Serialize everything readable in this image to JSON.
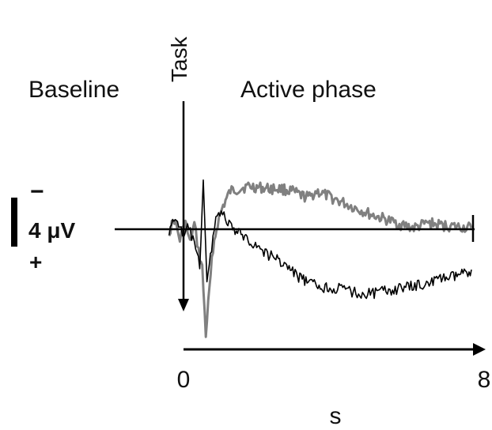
{
  "chart_data": {
    "type": "line",
    "labels": {
      "baseline": "Baseline",
      "task": "Task",
      "active_phase": "Active phase",
      "scale": "4 μV",
      "polarity_negative": "−",
      "polarity_positive": "+",
      "x_unit": "s"
    },
    "x_axis": {
      "ticks": [
        "0",
        "8"
      ],
      "range": [
        0,
        8
      ],
      "unit": "s"
    },
    "y_axis": {
      "unit": "μV",
      "scale_bar_value": 4,
      "negative_up": true
    },
    "series": [
      {
        "color": "#808080",
        "points": [
          [
            -0.4,
            0.2
          ],
          [
            -0.25,
            -0.8
          ],
          [
            -0.1,
            0.9
          ],
          [
            0.05,
            -0.6
          ],
          [
            0.18,
            1.2
          ],
          [
            0.3,
            -0.4
          ],
          [
            0.42,
            1.8
          ],
          [
            0.52,
            3.2
          ],
          [
            0.62,
            8.6
          ],
          [
            0.72,
            5.0
          ],
          [
            0.82,
            1.5
          ],
          [
            0.95,
            -0.5
          ],
          [
            1.1,
            -1.9
          ],
          [
            1.3,
            -3.1
          ],
          [
            1.55,
            -3.3
          ],
          [
            1.8,
            -3.5
          ],
          [
            2.1,
            -3.4
          ],
          [
            2.4,
            -3.3
          ],
          [
            2.7,
            -3.3
          ],
          [
            3.0,
            -3.1
          ],
          [
            3.3,
            -2.7
          ],
          [
            3.5,
            -2.6
          ],
          [
            3.7,
            -3.1
          ],
          [
            4.0,
            -2.7
          ],
          [
            4.4,
            -2.2
          ],
          [
            4.8,
            -1.7
          ],
          [
            5.2,
            -1.2
          ],
          [
            5.6,
            -0.8
          ],
          [
            6.0,
            -0.4
          ],
          [
            6.4,
            -0.1
          ],
          [
            6.8,
            -0.5
          ],
          [
            7.2,
            -0.3
          ],
          [
            7.6,
            -0.2
          ],
          [
            8.0,
            -0.1
          ]
        ]
      },
      {
        "color": "#000000",
        "points": [
          [
            -0.4,
            0.1
          ],
          [
            -0.2,
            -1.0
          ],
          [
            0.0,
            0.8
          ],
          [
            0.15,
            -0.3
          ],
          [
            0.3,
            1.4
          ],
          [
            0.45,
            3.0
          ],
          [
            0.55,
            -4.1
          ],
          [
            0.65,
            4.5
          ],
          [
            0.78,
            1.5
          ],
          [
            0.9,
            -1.1
          ],
          [
            1.05,
            -1.5
          ],
          [
            1.2,
            -0.6
          ],
          [
            1.4,
            0.1
          ],
          [
            1.7,
            0.6
          ],
          [
            2.0,
            1.3
          ],
          [
            2.3,
            2.0
          ],
          [
            2.6,
            2.4
          ],
          [
            2.9,
            3.1
          ],
          [
            3.2,
            3.9
          ],
          [
            3.5,
            4.4
          ],
          [
            3.8,
            4.7
          ],
          [
            4.1,
            4.8
          ],
          [
            4.5,
            4.9
          ],
          [
            4.9,
            5.3
          ],
          [
            5.3,
            5.2
          ],
          [
            5.7,
            5.0
          ],
          [
            6.1,
            4.8
          ],
          [
            6.5,
            4.6
          ],
          [
            6.9,
            4.3
          ],
          [
            7.2,
            4.0
          ],
          [
            7.5,
            3.9
          ],
          [
            7.8,
            3.6
          ],
          [
            8.0,
            3.3
          ]
        ]
      }
    ]
  }
}
